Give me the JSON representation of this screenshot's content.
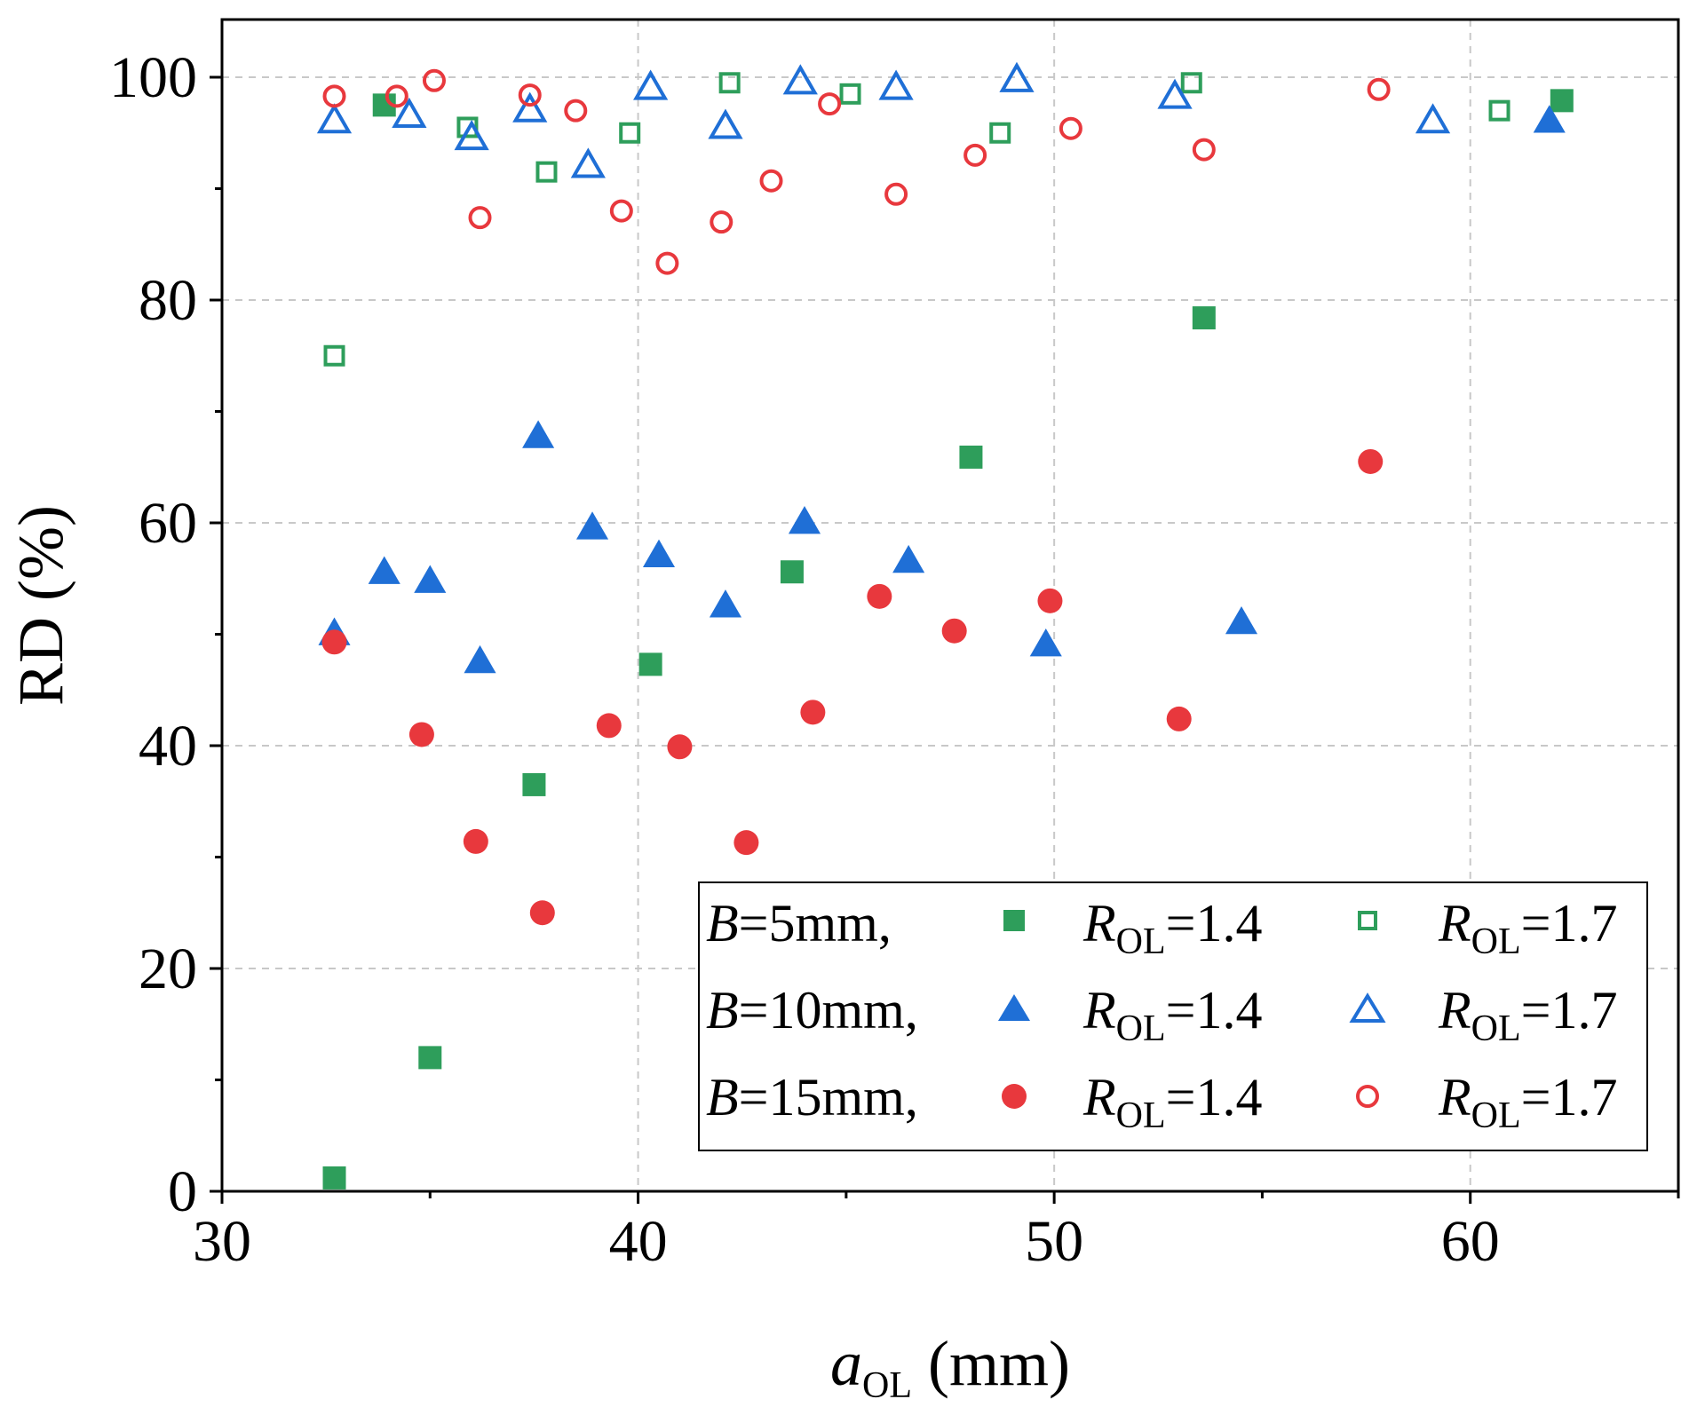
{
  "chart_data": {
    "type": "scatter",
    "xlabel": {
      "main": "a",
      "sub": "OL",
      "unit": " (mm)"
    },
    "ylabel": "RD (%)",
    "xlim": [
      30,
      65
    ],
    "ylim": [
      0,
      105
    ],
    "xticks": [
      30,
      40,
      50,
      60
    ],
    "yticks": [
      0,
      20,
      40,
      60,
      80,
      100
    ],
    "x_tick_labels": [
      "30",
      "40",
      "50",
      "60"
    ],
    "y_tick_labels": [
      "0",
      "20",
      "40",
      "60",
      "80",
      "100"
    ],
    "grid": true,
    "legend_position": "bottom-right",
    "legend_rows": [
      {
        "b_label": "B",
        "b_value": "=5mm,",
        "r14_label": "R",
        "r14_sub": "OL",
        "r14_value": "=1.4",
        "r17_label": "R",
        "r17_sub": "OL",
        "r17_value": "=1.7"
      },
      {
        "b_label": "B",
        "b_value": "=10mm,",
        "r14_label": "R",
        "r14_sub": "OL",
        "r14_value": "=1.4",
        "r17_label": "R",
        "r17_sub": "OL",
        "r17_value": "=1.7"
      },
      {
        "b_label": "B",
        "b_value": "=15mm,",
        "r14_label": "R",
        "r14_sub": "OL",
        "r14_value": "=1.4",
        "r17_label": "R",
        "r17_sub": "OL",
        "r17_value": "=1.7"
      }
    ],
    "series": [
      {
        "name": "B=5mm, ROL=1.4",
        "marker": "square",
        "filled": true,
        "color": "#2e9e5b",
        "x": [
          32.7,
          35.0,
          37.5,
          40.3,
          43.7,
          48.0,
          53.6,
          62.2,
          33.9
        ],
        "y": [
          1.2,
          12.0,
          36.5,
          47.3,
          55.6,
          65.9,
          78.4,
          97.9,
          97.5
        ]
      },
      {
        "name": "B=5mm, ROL=1.7",
        "marker": "square",
        "filled": false,
        "color": "#2e9e5b",
        "x": [
          32.7,
          35.9,
          37.8,
          39.8,
          42.2,
          45.1,
          48.7,
          53.3,
          60.7
        ],
        "y": [
          75.0,
          95.5,
          91.5,
          95.0,
          99.5,
          98.5,
          95.0,
          99.5,
          97.0
        ]
      },
      {
        "name": "B=10mm, ROL=1.4",
        "marker": "triangle",
        "filled": true,
        "color": "#1f6fd6",
        "x": [
          32.7,
          33.9,
          35.0,
          36.2,
          37.6,
          38.9,
          40.5,
          42.1,
          44.0,
          46.5,
          49.8,
          54.5,
          61.9
        ],
        "y": [
          50.0,
          55.5,
          54.7,
          47.5,
          67.7,
          59.5,
          57.0,
          52.5,
          60.0,
          56.5,
          49.0,
          51.0,
          96.0
        ]
      },
      {
        "name": "B=10mm, ROL=1.7",
        "marker": "triangle",
        "filled": false,
        "color": "#1f6fd6",
        "x": [
          32.7,
          34.5,
          36.0,
          37.4,
          38.8,
          40.3,
          42.1,
          43.9,
          46.2,
          49.1,
          52.9,
          59.1
        ],
        "y": [
          96.0,
          96.5,
          94.5,
          97.0,
          92.0,
          99.0,
          95.5,
          99.5,
          99.0,
          99.7,
          98.2,
          96.0
        ]
      },
      {
        "name": "B=15mm, ROL=1.4",
        "marker": "circle",
        "filled": true,
        "color": "#e8383d",
        "x": [
          32.7,
          34.8,
          36.1,
          37.7,
          39.3,
          41.0,
          42.6,
          44.2,
          45.8,
          47.6,
          49.9,
          53.0,
          57.6
        ],
        "y": [
          49.3,
          41.0,
          31.4,
          25.0,
          41.8,
          39.9,
          31.3,
          43.0,
          53.4,
          50.3,
          53.0,
          42.4,
          65.5
        ]
      },
      {
        "name": "B=15mm, ROL=1.7",
        "marker": "circle",
        "filled": false,
        "color": "#e8383d",
        "x": [
          32.7,
          34.2,
          35.1,
          36.2,
          37.4,
          38.5,
          39.6,
          40.7,
          42.0,
          43.2,
          44.6,
          46.2,
          48.1,
          50.4,
          53.6,
          57.8
        ],
        "y": [
          98.3,
          98.3,
          99.7,
          87.4,
          98.4,
          97.0,
          88.0,
          83.3,
          87.0,
          90.7,
          97.6,
          89.5,
          93.0,
          95.4,
          93.5,
          98.9
        ]
      }
    ]
  }
}
